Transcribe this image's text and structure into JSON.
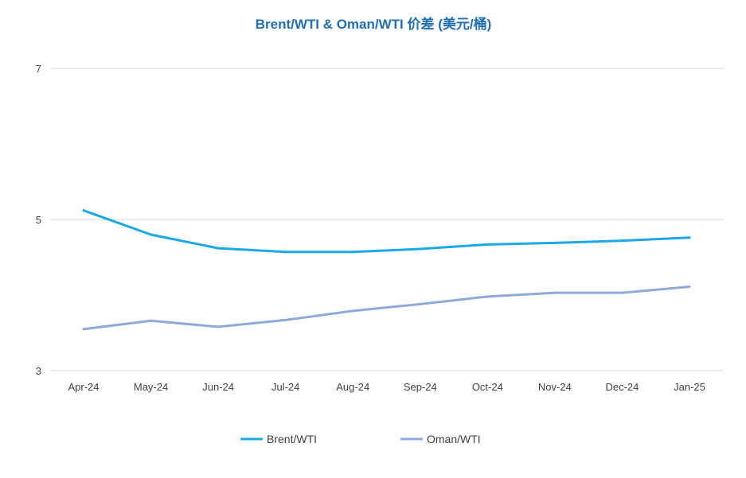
{
  "chart_data": {
    "type": "line",
    "title": "Brent/WTI & Oman/WTI 价差 (美元/桶)",
    "categories": [
      "Apr-24",
      "May-24",
      "Jun-24",
      "Jul-24",
      "Aug-24",
      "Sep-24",
      "Oct-24",
      "Nov-24",
      "Dec-24",
      "Jan-25"
    ],
    "series": [
      {
        "name": "Brent/WTI",
        "color": "#1aa9e6",
        "values": [
          5.12,
          4.8,
          4.62,
          4.57,
          4.57,
          4.61,
          4.67,
          4.69,
          4.72,
          4.76
        ]
      },
      {
        "name": "Oman/WTI",
        "color": "#8eaadb",
        "values": [
          3.55,
          3.66,
          3.58,
          3.67,
          3.79,
          3.88,
          3.98,
          4.03,
          4.03,
          4.11
        ]
      }
    ],
    "yticks": [
      3,
      5,
      7
    ],
    "ylim": [
      3,
      7
    ],
    "xlabel": "",
    "ylabel": "",
    "grid": true,
    "legend_position": "bottom",
    "title_color": "#1f6fb2",
    "gridline_color": "#d9d9d9"
  }
}
